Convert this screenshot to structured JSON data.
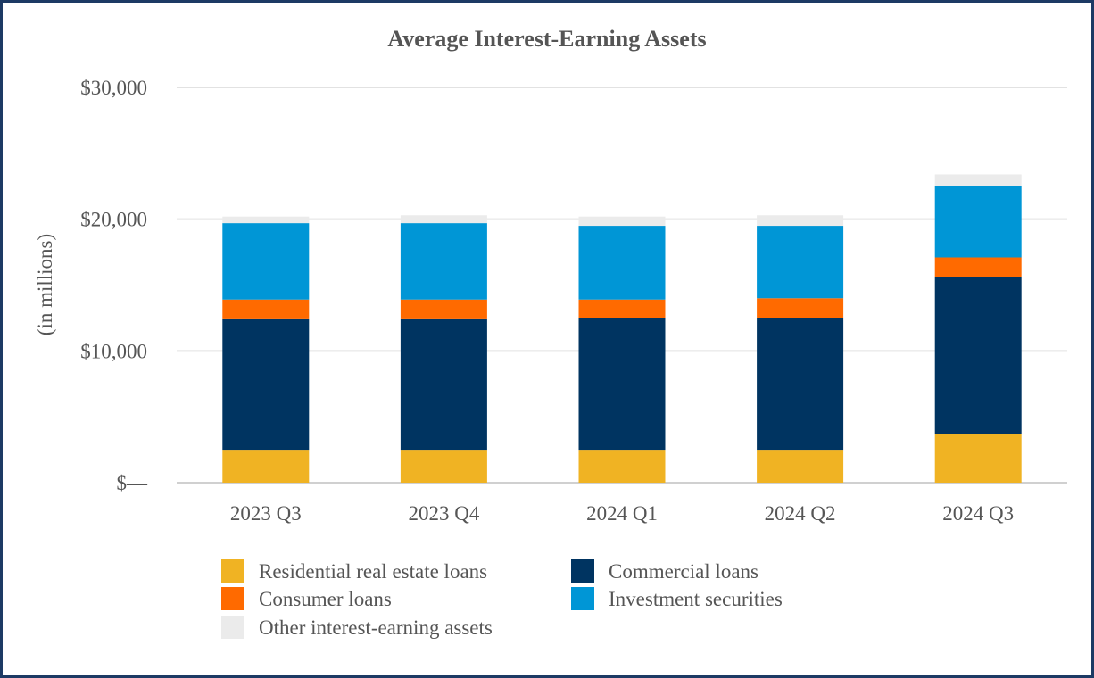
{
  "chart_data": {
    "type": "bar",
    "stacked": true,
    "title": "Average Interest-Earning Assets",
    "ylabel": "(in millions)",
    "xlabel": "",
    "ylim": [
      0,
      30000
    ],
    "yticks": [
      0,
      10000,
      20000,
      30000
    ],
    "ytick_labels": [
      "$—",
      "$10,000",
      "$20,000",
      "$30,000"
    ],
    "grid": true,
    "legend_position": "bottom",
    "categories": [
      "2023 Q3",
      "2023 Q4",
      "2024 Q1",
      "2024 Q2",
      "2024 Q3"
    ],
    "series": [
      {
        "name": "Residential real estate loans",
        "color": "#f0b323",
        "values": [
          2500,
          2500,
          2500,
          2500,
          3700
        ]
      },
      {
        "name": "Commercial loans",
        "color": "#003461",
        "values": [
          9900,
          9900,
          10000,
          10000,
          11900
        ]
      },
      {
        "name": "Consumer loans",
        "color": "#ff6a00",
        "values": [
          1500,
          1500,
          1400,
          1500,
          1500
        ]
      },
      {
        "name": "Investment securities",
        "color": "#0096d6",
        "values": [
          5800,
          5800,
          5600,
          5500,
          5400
        ]
      },
      {
        "name": "Other interest-earning assets",
        "color": "#ebebeb",
        "values": [
          500,
          600,
          700,
          800,
          900
        ]
      }
    ]
  }
}
